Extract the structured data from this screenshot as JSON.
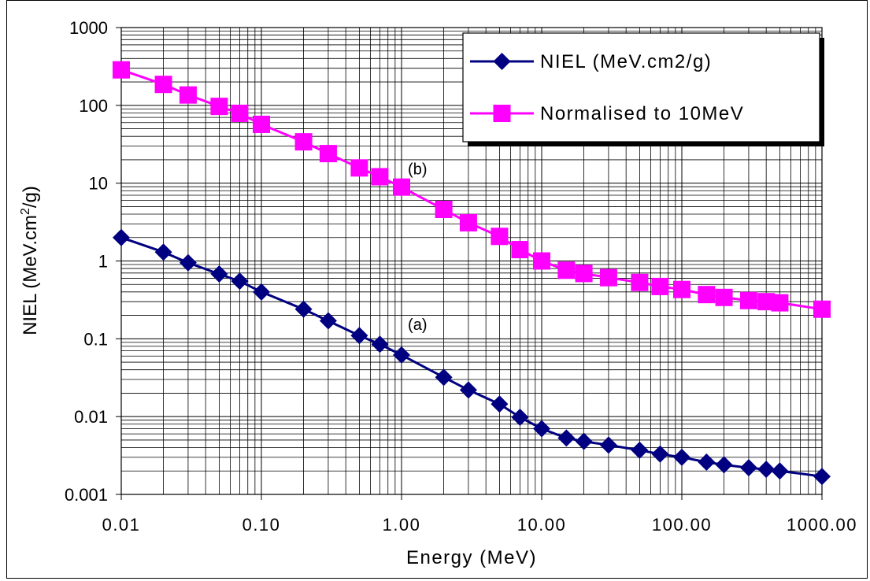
{
  "chart_data": {
    "type": "line",
    "xscale": "log",
    "yscale": "log",
    "xlim": [
      0.01,
      1000
    ],
    "ylim": [
      0.001,
      1000
    ],
    "grid": true,
    "legend_position": "top-right",
    "xlabel": "Energy (MeV)",
    "ylabel": "NIEL (MeV.cm²/g)",
    "xticks": [
      "0.01",
      "0.10",
      "1.00",
      "10.00",
      "100.00",
      "1000.00"
    ],
    "yticks": [
      "0.001",
      "0.01",
      "0.1",
      "1",
      "10",
      "100",
      "1000"
    ],
    "series": [
      {
        "name": "NIEL (MeV.cm2/g)",
        "color": "#000080",
        "marker": "diamond",
        "points": [
          [
            0.01,
            2.0
          ],
          [
            0.02,
            1.3
          ],
          [
            0.03,
            0.95
          ],
          [
            0.05,
            0.68
          ],
          [
            0.07,
            0.55
          ],
          [
            0.1,
            0.4
          ],
          [
            0.2,
            0.24
          ],
          [
            0.3,
            0.17
          ],
          [
            0.5,
            0.11
          ],
          [
            0.7,
            0.085
          ],
          [
            1,
            0.062
          ],
          [
            2,
            0.032
          ],
          [
            3,
            0.022
          ],
          [
            5,
            0.0145
          ],
          [
            7,
            0.0098
          ],
          [
            10,
            0.007
          ],
          [
            15,
            0.0053
          ],
          [
            20,
            0.0048
          ],
          [
            30,
            0.0043
          ],
          [
            50,
            0.0037
          ],
          [
            70,
            0.0033
          ],
          [
            100,
            0.003
          ],
          [
            150,
            0.0026
          ],
          [
            200,
            0.0024
          ],
          [
            300,
            0.0022
          ],
          [
            400,
            0.0021
          ],
          [
            500,
            0.002
          ],
          [
            1000,
            0.0017
          ]
        ]
      },
      {
        "name": "Normalised to 10MeV",
        "color": "#ff00ff",
        "marker": "square",
        "points": [
          [
            0.01,
            286
          ],
          [
            0.02,
            186
          ],
          [
            0.03,
            136
          ],
          [
            0.05,
            97
          ],
          [
            0.07,
            79
          ],
          [
            0.1,
            57
          ],
          [
            0.2,
            34
          ],
          [
            0.3,
            24
          ],
          [
            0.5,
            15.7
          ],
          [
            0.7,
            12.1
          ],
          [
            1,
            8.9
          ],
          [
            2,
            4.6
          ],
          [
            3,
            3.1
          ],
          [
            5,
            2.07
          ],
          [
            7,
            1.4
          ],
          [
            10,
            1.0
          ],
          [
            15,
            0.76
          ],
          [
            20,
            0.69
          ],
          [
            30,
            0.61
          ],
          [
            50,
            0.53
          ],
          [
            70,
            0.47
          ],
          [
            100,
            0.43
          ],
          [
            150,
            0.37
          ],
          [
            200,
            0.34
          ],
          [
            300,
            0.31
          ],
          [
            400,
            0.3
          ],
          [
            500,
            0.29
          ],
          [
            1000,
            0.24
          ]
        ]
      }
    ],
    "annotations": [
      {
        "text": "(a)",
        "x": 1.3,
        "y": 0.13
      },
      {
        "text": "(b)",
        "x": 1.3,
        "y": 13
      }
    ]
  }
}
